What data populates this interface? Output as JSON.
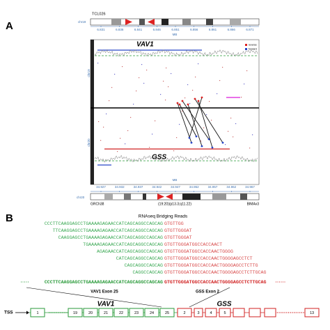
{
  "panel_a": {
    "label": "A",
    "sample": "TCL026",
    "chr_top": "chr19",
    "top_ticks": [
      "6.831",
      "6.836",
      "6.841",
      "6.846",
      "6.851",
      "6.856",
      "6.861",
      "6.866",
      "6.871"
    ],
    "mb_top": "MB",
    "gene_top": "VAV1",
    "legend": [
      "reverse",
      "forward"
    ],
    "side_top": "chr19",
    "side_bottom": "chr20",
    "gene_bottom": "GSS",
    "mb_bottom": "MB",
    "chr_bottom": "chr20",
    "bottom_ticks": [
      "34.927",
      "34.932",
      "34.937",
      "34.942",
      "34.947",
      "34.952",
      "34.957",
      "34.962",
      "34.967"
    ],
    "assembly": "GRCh38",
    "translocation": "(19:20)(p13.3;q11.22)",
    "version": "BIMAv3"
  },
  "panel_b": {
    "label": "B",
    "title": "RNAseq Bridging Reads",
    "reads": [
      {
        "left": "CCCTTCAAGGAGCCTGAAAAGAGAACCATCAGCAGGCCAGCAG",
        "right": "GTGTTGG"
      },
      {
        "left": "TTCAAGGAGCCTGAAAAGAGAACCATCAGCAGGCCAGCAG",
        "right": "GTGTTGGGAT"
      },
      {
        "left": "CAAGGAGCCTGAAAAGAGAACCATCAGCAGGCCAGCAG",
        "right": "GTGTTGGGAT"
      },
      {
        "left": "TGAAAAGAGAACCATCAGCAGGCCAGCAG",
        "right": "GTGTTGGGATGGCCACCAACT"
      },
      {
        "left": "AGAGAACCATCAGCAGGCCAGCAG",
        "right": "GTGTTGGGATGGCCACCAACTGGGG"
      },
      {
        "left": "CATCAGCAGGCCAGCAG",
        "right": "GTGTTGGGATGGCCACCAACTGGGGAGCCTCT"
      },
      {
        "left": "CAGCAGGCCAGCAG",
        "right": "GTGTTGGGATGGCCACCAACTGGGGAGCCTCTTG"
      },
      {
        "left": "CAGGCCAGCAG",
        "right": "GTGTTGGGATGGCCACCAACTGGGGAGCCTCTTGCAG"
      }
    ],
    "consensus": {
      "left": "CCCTTCAAGGAGCCTGAAAAGAGAACCATCAGCAGGCCAGCAG",
      "right": "GTGTTGGGATGGCCACCAACTGGGGAGCCTCTTGCAG"
    },
    "exon_label_left": "VAV1 Exon 25",
    "exon_label_right": "GSS Exon 2",
    "tss": "TSS",
    "gene_left": "VAV1",
    "gene_right": "GSS",
    "exons_left": [
      "1",
      "19",
      "20",
      "21",
      "22",
      "23",
      "24",
      "25"
    ],
    "exons_right": [
      "2",
      "3",
      "4",
      "5",
      "13"
    ]
  }
}
